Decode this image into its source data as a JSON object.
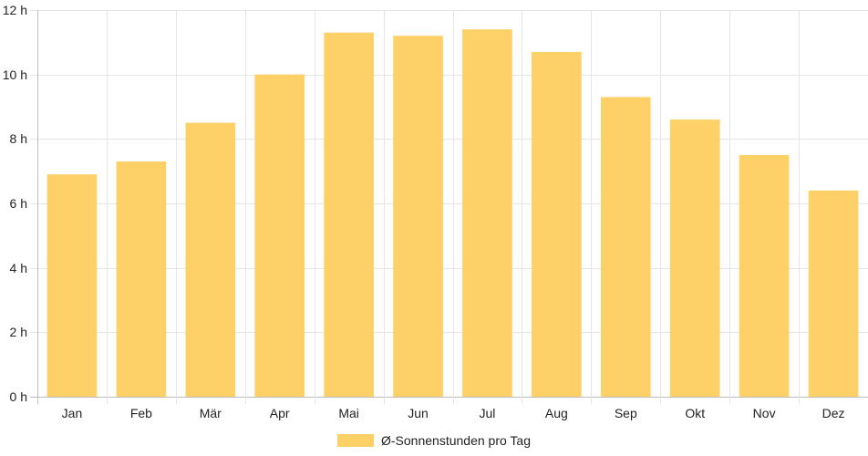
{
  "chart_data": {
    "type": "bar",
    "categories": [
      "Jan",
      "Feb",
      "Mär",
      "Apr",
      "Mai",
      "Jun",
      "Jul",
      "Aug",
      "Sep",
      "Okt",
      "Nov",
      "Dez"
    ],
    "series": [
      {
        "name": "Ø-Sonnenstunden pro Tag",
        "values": [
          6.9,
          7.3,
          8.5,
          10.0,
          11.3,
          11.2,
          11.4,
          10.7,
          9.3,
          8.6,
          7.5,
          6.4
        ]
      }
    ],
    "y_ticks": [
      0,
      2,
      4,
      6,
      8,
      10,
      12
    ],
    "y_unit": "h",
    "ylim": [
      0,
      12
    ],
    "grid": true,
    "legend_position": "bottom",
    "bar_color": "#FDD068",
    "grid_color": "#E5E5E5"
  },
  "legend": {
    "label": "Ø-Sonnenstunden pro Tag"
  }
}
